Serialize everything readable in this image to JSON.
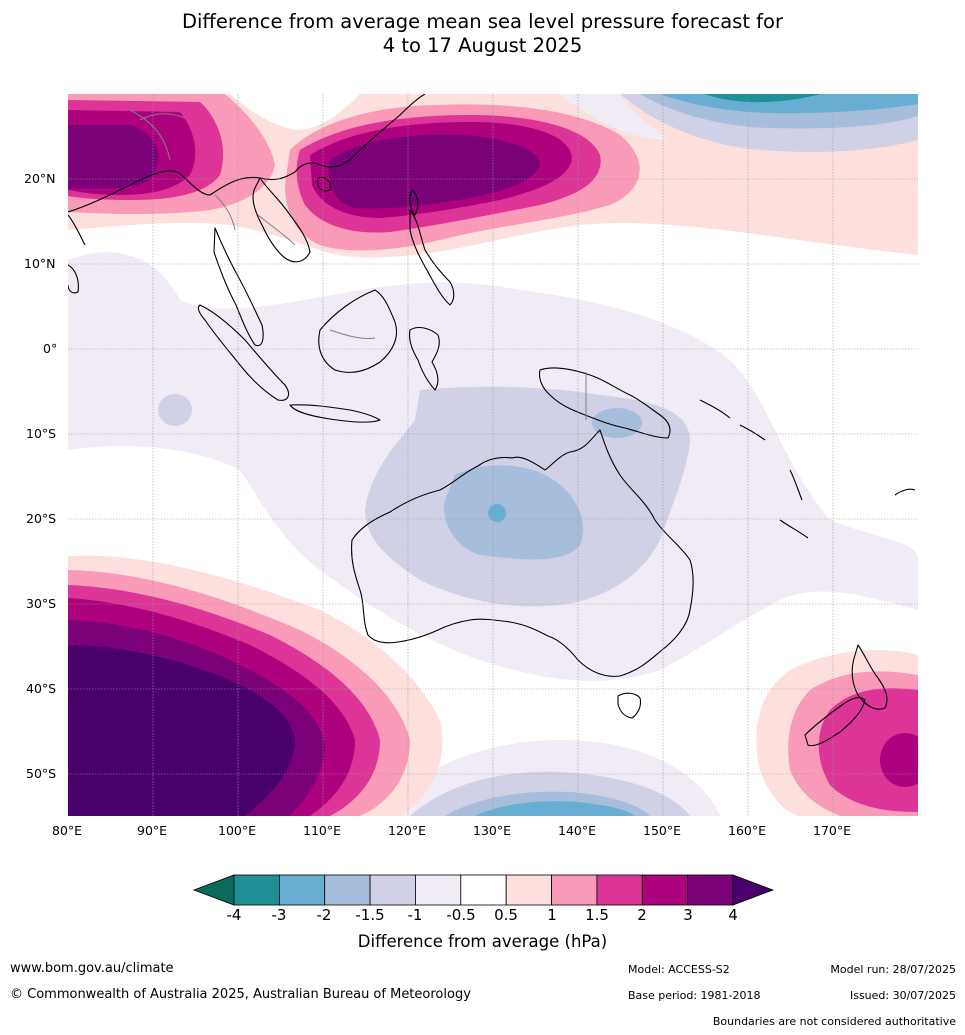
{
  "title": {
    "line1": "Difference from average mean sea level pressure forecast for",
    "line2": "4 to 17 August 2025"
  },
  "map": {
    "lon_labels": [
      "80°E",
      "90°E",
      "100°E",
      "110°E",
      "120°E",
      "130°E",
      "140°E",
      "150°E",
      "160°E",
      "170°E"
    ],
    "lat_labels": [
      "20°N",
      "10°N",
      "0°",
      "10°S",
      "20°S",
      "30°S",
      "40°S",
      "50°S"
    ],
    "extent": {
      "lon": [
        80,
        180
      ],
      "lat": [
        -55,
        30
      ]
    }
  },
  "colorbar": {
    "ticks": [
      "-4",
      "-3",
      "-2",
      "-1.5",
      "-1",
      "-0.5",
      "0.5",
      "1",
      "1.5",
      "2",
      "3",
      "4"
    ],
    "colors": [
      "#0a6b5a",
      "#1e9096",
      "#68aed2",
      "#a6bddb",
      "#d0d1e6",
      "#f1ebf5",
      "#ffffff",
      "#fde0dd",
      "#f89ab8",
      "#dd3497",
      "#ae017e",
      "#7a0177",
      "#49006a"
    ],
    "title": "Difference from average (hPa)"
  },
  "footer": {
    "url": "www.bom.gov.au/climate",
    "copyright": "© Commonwealth of Australia 2025, Australian Bureau of Meteorology",
    "model": "Model: ACCESS-S2",
    "base_period": "Base period: 1981-2018",
    "model_run": "Model run: 28/07/2025",
    "issued": "Issued: 30/07/2025",
    "disclaimer": "Boundaries are not considered authoritative"
  }
}
